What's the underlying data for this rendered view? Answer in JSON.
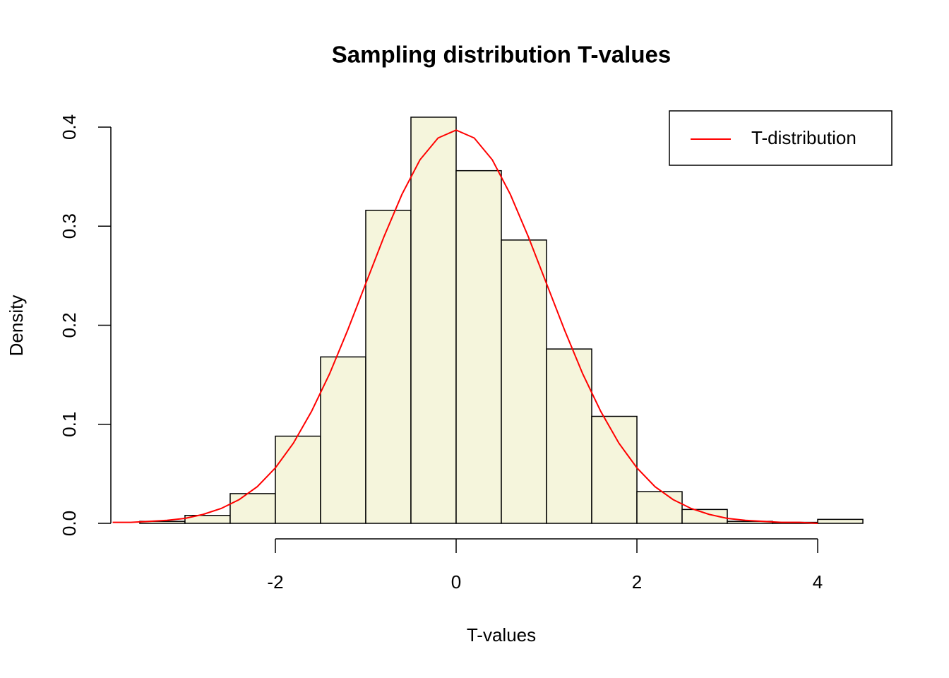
{
  "chart_data": {
    "type": "histogram",
    "title": "Sampling distribution T-values",
    "xlabel": "T-values",
    "ylabel": "Density",
    "bins": [
      -3.5,
      -3,
      -2.5,
      -2,
      -1.5,
      -1,
      -0.5,
      0,
      0.5,
      1,
      1.5,
      2,
      2.5,
      3,
      3.5,
      4,
      4.5
    ],
    "values": [
      0.002,
      0.008,
      0.03,
      0.088,
      0.168,
      0.316,
      0.41,
      0.356,
      0.286,
      0.176,
      0.108,
      0.032,
      0.014,
      0.002,
      0.001,
      0.004
    ],
    "color": "#F5F5DC",
    "xlim": [
      -3.82,
      4.82
    ],
    "ylim": [
      0,
      0.426
    ],
    "xticks": [
      -2,
      0,
      2,
      4
    ],
    "yticks": [
      {
        "value": 0,
        "label": "0.0"
      },
      0.1,
      0.2,
      0.3,
      0.4
    ],
    "series": [
      {
        "name": "T-distribution",
        "color": "#ff0000",
        "x": [
          -3.8,
          -3.6,
          -3.4,
          -3.2,
          -3.0,
          -2.8,
          -2.6,
          -2.4,
          -2.2,
          -2.0,
          -1.8,
          -1.6,
          -1.4,
          -1.2,
          -1.0,
          -0.8,
          -0.6,
          -0.4,
          -0.2,
          0,
          0.2,
          0.4,
          0.6,
          0.8,
          1.0,
          1.2,
          1.4,
          1.6,
          1.8,
          2.0,
          2.2,
          2.4,
          2.6,
          2.8,
          3.0,
          3.2,
          3.4,
          3.6,
          3.8,
          4.0
        ],
        "values": [
          0.001,
          0.001,
          0.002,
          0.003,
          0.005,
          0.009,
          0.015,
          0.024,
          0.037,
          0.056,
          0.081,
          0.113,
          0.151,
          0.195,
          0.242,
          0.289,
          0.332,
          0.367,
          0.389,
          0.397,
          0.389,
          0.367,
          0.332,
          0.289,
          0.242,
          0.195,
          0.151,
          0.113,
          0.081,
          0.056,
          0.037,
          0.024,
          0.015,
          0.009,
          0.005,
          0.003,
          0.002,
          0.001,
          0.001,
          0
        ]
      }
    ],
    "legend": "topright"
  }
}
